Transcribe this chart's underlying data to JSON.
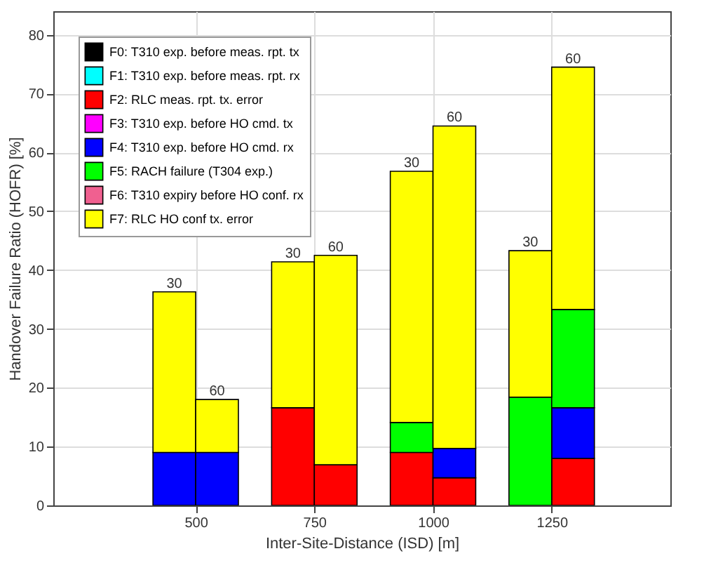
{
  "chart_data": {
    "type": "bar",
    "stacked": true,
    "xlabel": "Inter-Site-Distance (ISD) [m]",
    "ylabel": "Handover Failure Ratio (HOFR) [%]",
    "x": [
      455,
      545,
      705,
      795,
      955,
      1045,
      1205,
      1295
    ],
    "series": [
      {
        "name": "F0: T310 exp. before meas. rpt. tx",
        "color": "#000000",
        "values": [
          null,
          null,
          null,
          null,
          null,
          null,
          null,
          null
        ]
      },
      {
        "name": "F1: T310 exp. before meas. rpt. rx",
        "color": "#00ffff",
        "values": [
          null,
          null,
          null,
          null,
          null,
          null,
          null,
          null
        ]
      },
      {
        "name": "F2: RLC meas. rpt. tx. error",
        "color": "#ff0000",
        "values": [
          null,
          null,
          16.6,
          6.9,
          9,
          4.7,
          null,
          8
        ]
      },
      {
        "name": "F3: T310 exp. before HO cmd. tx",
        "color": "#ff00ff",
        "values": [
          null,
          null,
          null,
          null,
          null,
          null,
          null,
          null
        ]
      },
      {
        "name": "F4: T310 exp. before HO cmd. rx",
        "color": "#0000ff",
        "values": [
          9,
          9,
          null,
          null,
          null,
          5,
          null,
          8.6
        ]
      },
      {
        "name": "F5: RACH failure (T304 exp.)",
        "color": "#00ff00",
        "values": [
          null,
          null,
          null,
          null,
          5.1,
          null,
          18.4,
          16.7
        ]
      },
      {
        "name": "F6: T310 expiry before HO conf. rx",
        "color": "#f06090",
        "values": [
          null,
          null,
          null,
          null,
          null,
          null,
          null,
          null
        ]
      },
      {
        "name": "F7: RLC HO conf tx. error",
        "color": "#ffff00",
        "values": [
          27.3,
          9,
          24.8,
          35.6,
          42.7,
          54.8,
          24.9,
          41.2
        ]
      }
    ],
    "annotations": [
      {
        "text": "30",
        "x": 455,
        "y": 36.3
      },
      {
        "text": "60",
        "x": 545,
        "y": 18
      },
      {
        "text": "30",
        "x": 705,
        "y": 41.4
      },
      {
        "text": "60",
        "x": 795,
        "y": 42.5
      },
      {
        "text": "30",
        "x": 955,
        "y": 56.8
      },
      {
        "text": "60",
        "x": 1045,
        "y": 64.5
      },
      {
        "text": "30",
        "x": 1205,
        "y": 43.3
      },
      {
        "text": "60",
        "x": 1295,
        "y": 74.5
      }
    ],
    "xlim": [
      200,
      1500
    ],
    "xticks": [
      500,
      750,
      1000,
      1250
    ],
    "ylim": [
      0,
      84
    ],
    "yticks": [
      0,
      10,
      20,
      30,
      40,
      50,
      60,
      70,
      80
    ],
    "grid": true,
    "legend": "top left"
  }
}
